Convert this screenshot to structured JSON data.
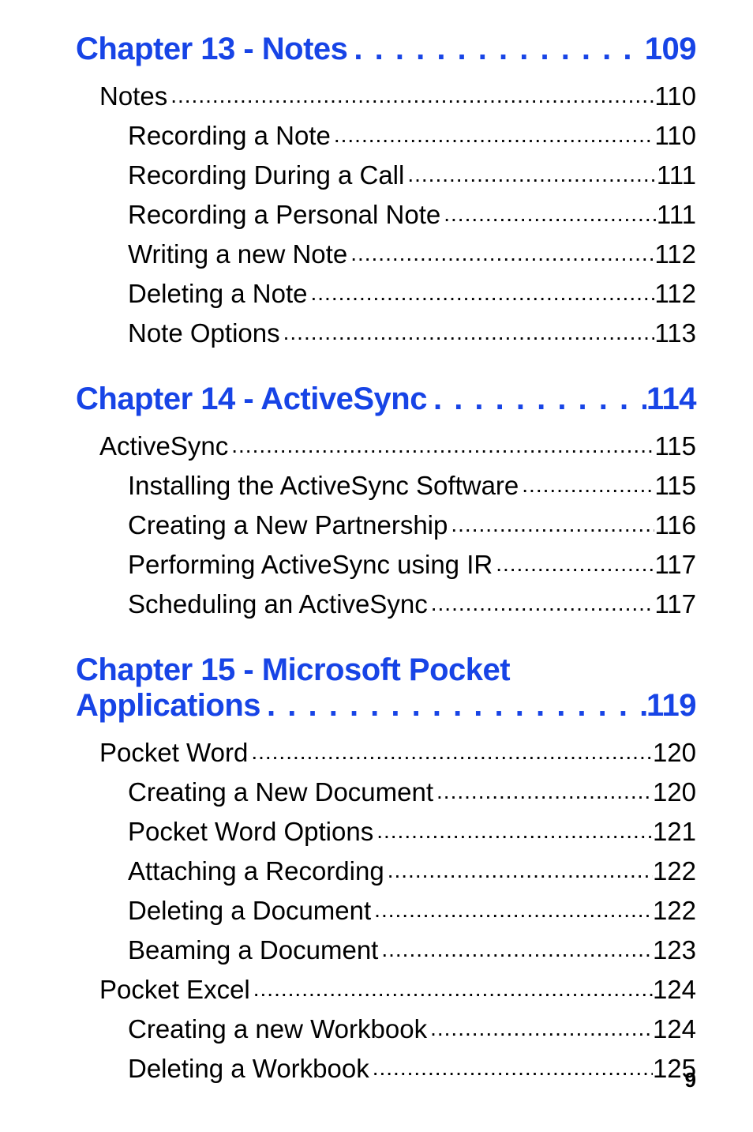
{
  "colors": {
    "chapter": "#1744e6",
    "text": "#000000",
    "background": "#ffffff"
  },
  "typography": {
    "chapter_fontsize": 40,
    "level1_fontsize": 33,
    "level2_fontsize": 33,
    "pagenum_fontsize": 26,
    "font_family": "Arial"
  },
  "page_number": "9",
  "chapters": [
    {
      "title": "Chapter 13 - Notes",
      "page": "109",
      "sections": [
        {
          "level": 1,
          "text": "Notes",
          "page": "110"
        },
        {
          "level": 2,
          "text": "Recording a Note",
          "page": "110"
        },
        {
          "level": 2,
          "text": "Recording During a Call",
          "page": "111"
        },
        {
          "level": 2,
          "text": "Recording a Personal Note",
          "page": "111"
        },
        {
          "level": 2,
          "text": "Writing a new Note",
          "page": "112"
        },
        {
          "level": 2,
          "text": "Deleting a Note",
          "page": "112"
        },
        {
          "level": 2,
          "text": "Note Options",
          "page": "113"
        }
      ]
    },
    {
      "title": "Chapter 14 - ActiveSync",
      "page": "114",
      "sections": [
        {
          "level": 1,
          "text": "ActiveSync",
          "page": "115"
        },
        {
          "level": 2,
          "text": "Installing the ActiveSync Software",
          "page": "115"
        },
        {
          "level": 2,
          "text": "Creating a New Partnership",
          "page": "116"
        },
        {
          "level": 2,
          "text": "Performing ActiveSync using IR",
          "page": "117"
        },
        {
          "level": 2,
          "text": "Scheduling an ActiveSync",
          "page": "117"
        }
      ]
    },
    {
      "title": "Chapter 15 - Microsoft Pocket Applications",
      "page": "119",
      "sections": [
        {
          "level": 1,
          "text": "Pocket Word",
          "page": "120"
        },
        {
          "level": 2,
          "text": "Creating a New Document",
          "page": "120"
        },
        {
          "level": 2,
          "text": "Pocket Word Options",
          "page": "121"
        },
        {
          "level": 2,
          "text": "Attaching a Recording",
          "page": "122"
        },
        {
          "level": 2,
          "text": "Deleting a Document",
          "page": "122"
        },
        {
          "level": 2,
          "text": "Beaming a Document",
          "page": "123"
        },
        {
          "level": 1,
          "text": "Pocket Excel",
          "page": "124"
        },
        {
          "level": 2,
          "text": "Creating a new Workbook",
          "page": "124"
        },
        {
          "level": 2,
          "text": "Deleting a Workbook",
          "page": "125"
        }
      ]
    }
  ]
}
